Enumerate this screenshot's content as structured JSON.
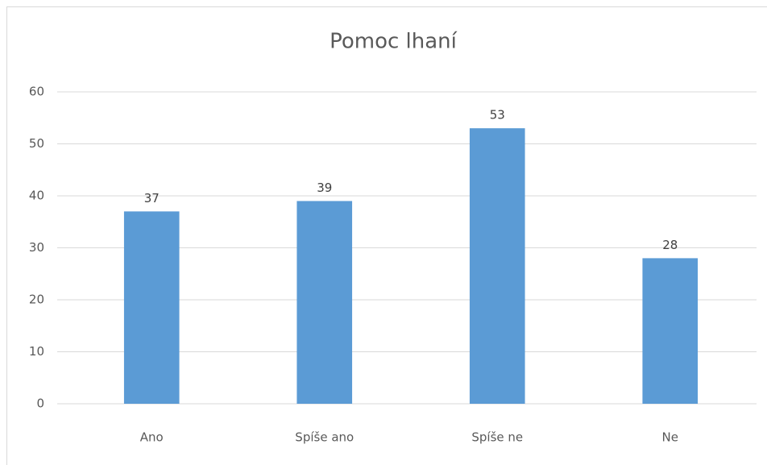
{
  "chart_data": {
    "type": "bar",
    "title": "Pomoc lhaní",
    "categories": [
      "Ano",
      "Spíše ano",
      "Spíše ne",
      "Ne"
    ],
    "values": [
      37,
      39,
      53,
      28
    ],
    "color": "#5b9bd5",
    "ylim": [
      0,
      60
    ],
    "yticks": [
      0,
      10,
      20,
      30,
      40,
      50,
      60
    ],
    "grid": true,
    "data_labels": true
  }
}
